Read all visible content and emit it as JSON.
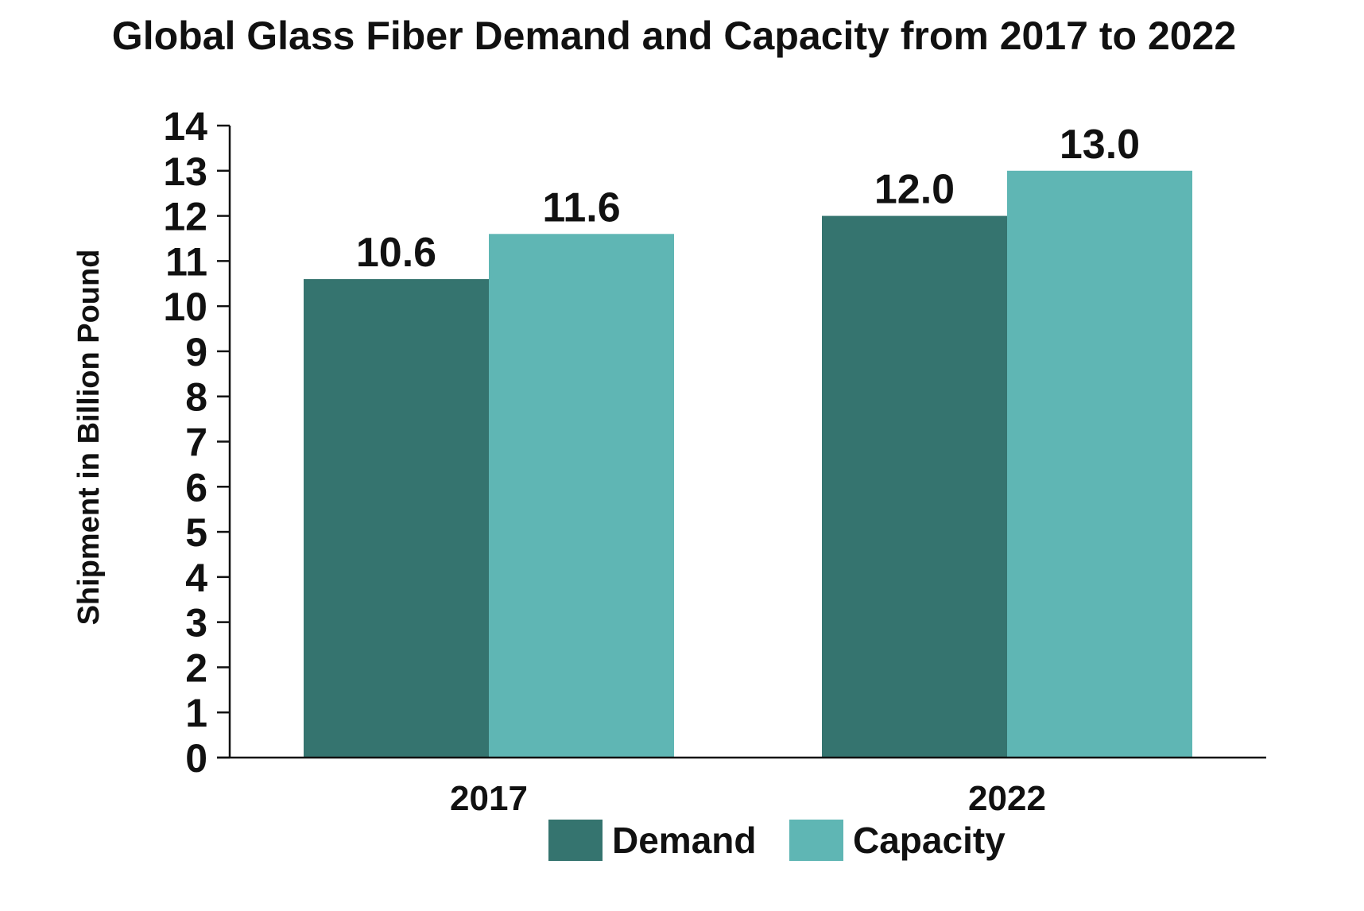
{
  "chart_data": {
    "type": "bar",
    "title": "Global Glass Fiber Demand and Capacity from 2017 to 2022",
    "xlabel": "",
    "ylabel": "Shipment in Billion Pound",
    "categories": [
      "2017",
      "2022"
    ],
    "series": [
      {
        "name": "Demand",
        "values": [
          10.6,
          12.0
        ],
        "labels": [
          "10.6",
          "12.0"
        ],
        "color": "#35746f"
      },
      {
        "name": "Capacity",
        "values": [
          11.6,
          13.0
        ],
        "labels": [
          "11.6",
          "13.0"
        ],
        "color": "#5fb6b4"
      }
    ],
    "ylim": [
      0,
      14
    ],
    "yticks": [
      "0",
      "1",
      "2",
      "3",
      "4",
      "5",
      "6",
      "7",
      "8",
      "9",
      "10",
      "11",
      "12",
      "13",
      "14"
    ],
    "grid": false,
    "legend_position": "bottom-center"
  }
}
